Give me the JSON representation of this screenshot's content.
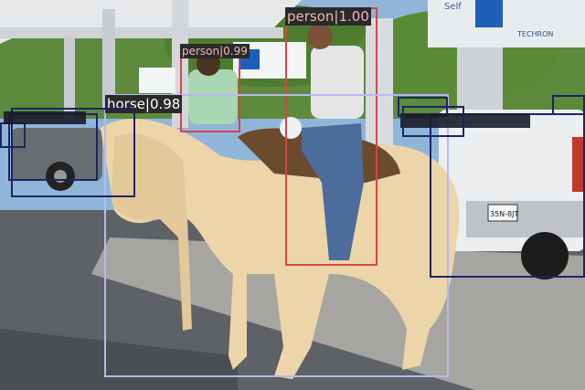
{
  "detections": [
    {
      "label": "person|1.00",
      "color": "#d9434b",
      "text_color": "#f4b6b9",
      "label_bg": "#2a2a2a"
    },
    {
      "label": "person|0.99",
      "color": "#d9434b",
      "text_color": "#f4b6b9",
      "label_bg": "#2a2a2a"
    },
    {
      "label": "horse|0.98",
      "color": "#b9b8f0",
      "text_color": "#ffffff",
      "label_bg": "#2a2a2a"
    },
    {
      "label": "",
      "color": "#1c2466",
      "text_color": "#ffffff",
      "label_bg": "#1b1b2a"
    },
    {
      "label": "",
      "color": "#1c2466",
      "text_color": "#ffffff",
      "label_bg": "#1b1b2a"
    },
    {
      "label": "",
      "color": "#1c2466",
      "text_color": "#ffffff",
      "label_bg": "#1b1b2a"
    },
    {
      "label": "",
      "color": "#1c2466",
      "text_color": "#ffffff",
      "label_bg": "#1b1b2a"
    },
    {
      "label": "",
      "color": "#1c2466",
      "text_color": "#ffffff",
      "label_bg": "#1b1b2a"
    },
    {
      "label": "",
      "color": "#1c2466",
      "text_color": "#ffffff",
      "label_bg": "#1b1b2a"
    }
  ],
  "signs": {
    "station_label": "Self",
    "brand_text": "TECHRON",
    "plate_text": "35N-8JT"
  }
}
